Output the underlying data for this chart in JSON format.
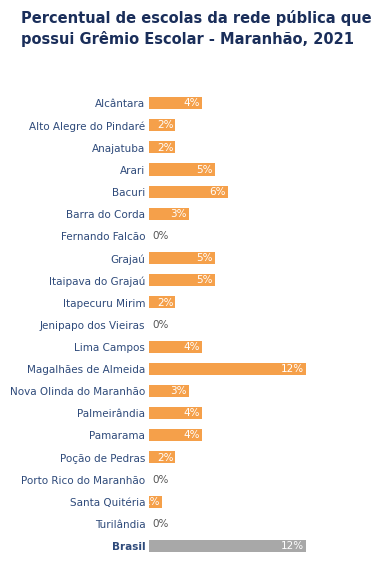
{
  "title": "Percentual de escolas da rede pública que\npossui Grêmio Escolar - Maranhão, 2021",
  "categories": [
    "Alcântara",
    "Alto Alegre do Pindaré",
    "Anajatuba",
    "Arari",
    "Bacuri",
    "Barra do Corda",
    "Fernando Falcão",
    "Grajaú",
    "Itaipava do Grajaú",
    "Itapecuru Mirim",
    "Jenipapo dos Vieiras",
    "Lima Campos",
    "Magalhães de Almeida",
    "Nova Olinda do Maranhão",
    "Palmeirândia",
    "Pamarama",
    "Poção de Pedras",
    "Porto Rico do Maranhão",
    "Santa Quitéria",
    "Turilândia",
    "Brasil"
  ],
  "values": [
    4,
    2,
    2,
    5,
    6,
    3,
    0,
    5,
    5,
    2,
    0,
    4,
    12,
    3,
    4,
    4,
    2,
    0,
    1,
    0,
    12
  ],
  "bar_colors": [
    "#f5a04a",
    "#f5a04a",
    "#f5a04a",
    "#f5a04a",
    "#f5a04a",
    "#f5a04a",
    "#f5a04a",
    "#f5a04a",
    "#f5a04a",
    "#f5a04a",
    "#f5a04a",
    "#f5a04a",
    "#f5a04a",
    "#f5a04a",
    "#f5a04a",
    "#f5a04a",
    "#f5a04a",
    "#f5a04a",
    "#f5a04a",
    "#f5a04a",
    "#a8a8a8"
  ],
  "label_color_inside": "#ffffff",
  "label_color_outside": "#555555",
  "title_fontsize": 10.5,
  "tick_fontsize": 7.5,
  "label_fontsize": 7.5,
  "title_color": "#1a2e5a",
  "tick_color": "#2e4a7a",
  "background_color": "#ffffff",
  "xlim": [
    0,
    13.5
  ]
}
